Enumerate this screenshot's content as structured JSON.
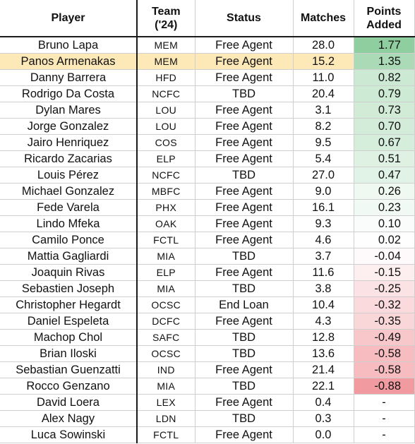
{
  "headers": {
    "player": "Player",
    "team_line1": "Team",
    "team_line2": "('24)",
    "status": "Status",
    "matches": "Matches",
    "points_line1": "Points",
    "points_line2": "Added"
  },
  "colors": {
    "positive_max": "#8fcf9f",
    "negative_max": "#f19aa0",
    "highlight_row": "#fde8b8"
  },
  "rows": [
    {
      "player": "Bruno Lapa",
      "team": "MEM",
      "status": "Free Agent",
      "matches": "28.0",
      "points": "1.77",
      "value": 1.77,
      "highlight": false
    },
    {
      "player": "Panos Armenakas",
      "team": "MEM",
      "status": "Free Agent",
      "matches": "15.2",
      "points": "1.35",
      "value": 1.35,
      "highlight": true
    },
    {
      "player": "Danny Barrera",
      "team": "HFD",
      "status": "Free Agent",
      "matches": "11.0",
      "points": "0.82",
      "value": 0.82,
      "highlight": false
    },
    {
      "player": "Rodrigo Da Costa",
      "team": "NCFC",
      "status": "TBD",
      "matches": "20.4",
      "points": "0.79",
      "value": 0.79,
      "highlight": false
    },
    {
      "player": "Dylan Mares",
      "team": "LOU",
      "status": "Free Agent",
      "matches": "3.1",
      "points": "0.73",
      "value": 0.73,
      "highlight": false
    },
    {
      "player": "Jorge Gonzalez",
      "team": "LOU",
      "status": "Free Agent",
      "matches": "8.2",
      "points": "0.70",
      "value": 0.7,
      "highlight": false
    },
    {
      "player": "Jairo Henriquez",
      "team": "COS",
      "status": "Free Agent",
      "matches": "9.5",
      "points": "0.67",
      "value": 0.67,
      "highlight": false
    },
    {
      "player": "Ricardo Zacarias",
      "team": "ELP",
      "status": "Free Agent",
      "matches": "5.4",
      "points": "0.51",
      "value": 0.51,
      "highlight": false
    },
    {
      "player": "Louis Pérez",
      "team": "NCFC",
      "status": "TBD",
      "matches": "27.0",
      "points": "0.47",
      "value": 0.47,
      "highlight": false
    },
    {
      "player": "Michael Gonzalez",
      "team": "MBFC",
      "status": "Free Agent",
      "matches": "9.0",
      "points": "0.26",
      "value": 0.26,
      "highlight": false
    },
    {
      "player": "Fede Varela",
      "team": "PHX",
      "status": "Free Agent",
      "matches": "16.1",
      "points": "0.23",
      "value": 0.23,
      "highlight": false
    },
    {
      "player": "Lindo Mfeka",
      "team": "OAK",
      "status": "Free Agent",
      "matches": "9.3",
      "points": "0.10",
      "value": 0.1,
      "highlight": false
    },
    {
      "player": "Camilo Ponce",
      "team": "FCTL",
      "status": "Free Agent",
      "matches": "4.6",
      "points": "0.02",
      "value": 0.02,
      "highlight": false
    },
    {
      "player": "Mattia Gagliardi",
      "team": "MIA",
      "status": "TBD",
      "matches": "3.7",
      "points": "-0.04",
      "value": -0.04,
      "highlight": false
    },
    {
      "player": "Joaquin Rivas",
      "team": "ELP",
      "status": "Free Agent",
      "matches": "11.6",
      "points": "-0.15",
      "value": -0.15,
      "highlight": false
    },
    {
      "player": "Sebastien Joseph",
      "team": "MIA",
      "status": "TBD",
      "matches": "3.8",
      "points": "-0.25",
      "value": -0.25,
      "highlight": false
    },
    {
      "player": "Christopher Hegardt",
      "team": "OCSC",
      "status": "End Loan",
      "matches": "10.4",
      "points": "-0.32",
      "value": -0.32,
      "highlight": false
    },
    {
      "player": "Daniel Espeleta",
      "team": "DCFC",
      "status": "Free Agent",
      "matches": "4.3",
      "points": "-0.35",
      "value": -0.35,
      "highlight": false
    },
    {
      "player": "Machop Chol",
      "team": "SAFC",
      "status": "TBD",
      "matches": "12.8",
      "points": "-0.49",
      "value": -0.49,
      "highlight": false
    },
    {
      "player": "Brian Iloski",
      "team": "OCSC",
      "status": "TBD",
      "matches": "13.6",
      "points": "-0.58",
      "value": -0.58,
      "highlight": false
    },
    {
      "player": "Sebastian Guenzatti",
      "team": "IND",
      "status": "Free Agent",
      "matches": "21.4",
      "points": "-0.58",
      "value": -0.58,
      "highlight": false
    },
    {
      "player": "Rocco Genzano",
      "team": "MIA",
      "status": "TBD",
      "matches": "22.1",
      "points": "-0.88",
      "value": -0.88,
      "highlight": false
    },
    {
      "player": "David Loera",
      "team": "LEX",
      "status": "Free Agent",
      "matches": "0.4",
      "points": "-",
      "value": null,
      "highlight": false
    },
    {
      "player": "Alex Nagy",
      "team": "LDN",
      "status": "TBD",
      "matches": "0.3",
      "points": "-",
      "value": null,
      "highlight": false
    },
    {
      "player": "Luca Sowinski",
      "team": "FCTL",
      "status": "Free Agent",
      "matches": "0.0",
      "points": "-",
      "value": null,
      "highlight": false
    }
  ]
}
